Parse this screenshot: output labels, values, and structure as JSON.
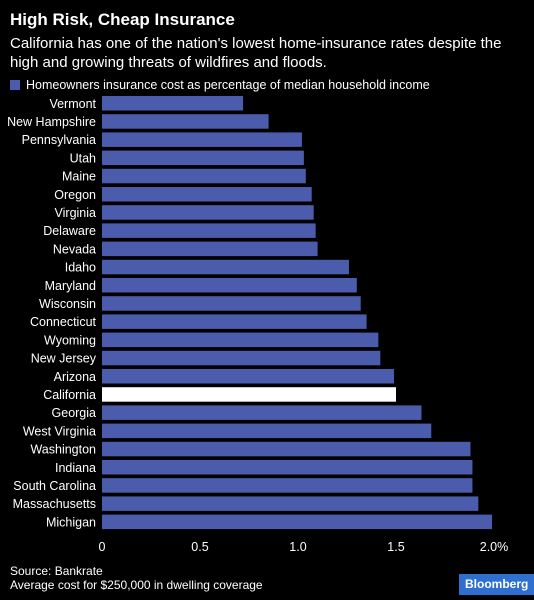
{
  "header": {
    "title": "High Risk, Cheap Insurance",
    "subtitle": "California has one of the nation's lowest home-insurance rates despite the high and growing threats of wildfires and floods."
  },
  "legend": {
    "label": "Homeowners insurance cost as percentage of median household income"
  },
  "footer": {
    "source": "Source: Bankrate",
    "note": "Average cost for $250,000 in dwelling coverage",
    "brand": "Bloomberg"
  },
  "colors": {
    "bar": "#4a5cab",
    "highlight": "#ffffff",
    "background": "#000000",
    "brand": "#2f6fd0"
  },
  "chart_data": {
    "type": "bar",
    "orientation": "horizontal",
    "categories": [
      "Vermont",
      "New Hampshire",
      "Pennsylvania",
      "Utah",
      "Maine",
      "Oregon",
      "Virginia",
      "Delaware",
      "Nevada",
      "Idaho",
      "Maryland",
      "Wisconsin",
      "Connecticut",
      "Wyoming",
      "New Jersey",
      "Arizona",
      "California",
      "Georgia",
      "West Virginia",
      "Washington",
      "Indiana",
      "South Carolina",
      "Massachusetts",
      "Michigan"
    ],
    "values": [
      0.72,
      0.85,
      1.02,
      1.03,
      1.04,
      1.07,
      1.08,
      1.09,
      1.1,
      1.26,
      1.3,
      1.32,
      1.35,
      1.41,
      1.42,
      1.49,
      1.5,
      1.63,
      1.68,
      1.88,
      1.89,
      1.89,
      1.92,
      1.99
    ],
    "highlight": "California",
    "xlim": [
      0,
      2.0
    ],
    "xticks": [
      0,
      0.5,
      1.0,
      1.5,
      2.0
    ],
    "xtick_labels": [
      "0",
      "0.5",
      "1.0",
      "1.5",
      "2.0%"
    ],
    "xlabel": "",
    "ylabel": "",
    "grid": false
  }
}
